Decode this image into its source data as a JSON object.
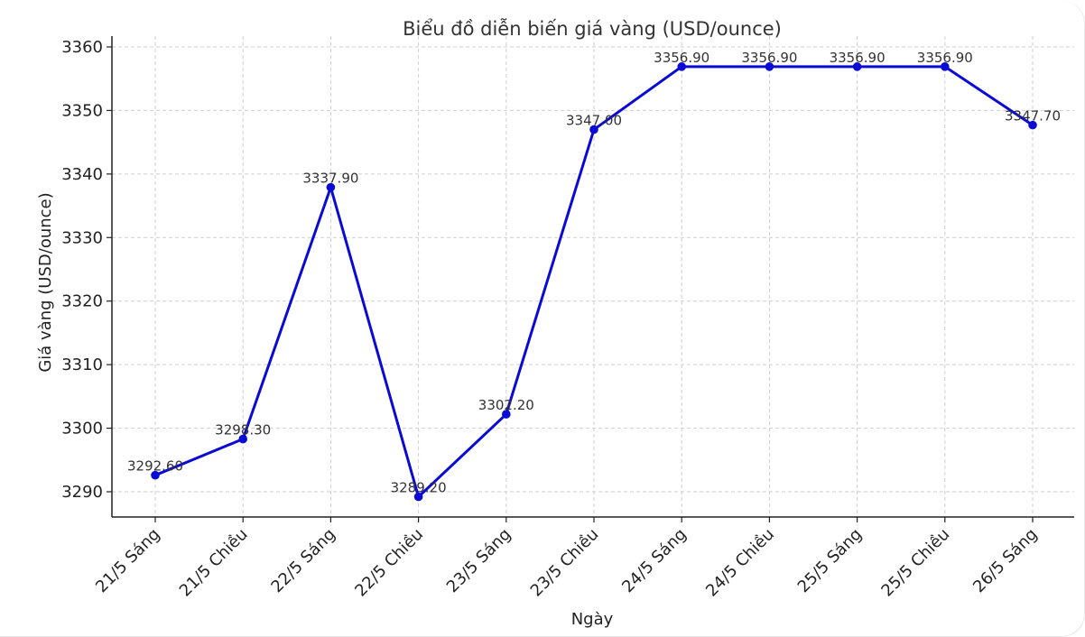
{
  "chart_data": {
    "type": "line",
    "title": "Biểu đồ diễn biến giá vàng (USD/ounce)",
    "xlabel": "Ngày",
    "ylabel": "Giá vàng (USD/ounce)",
    "categories": [
      "21/5 Sáng",
      "21/5 Chiều",
      "22/5 Sáng",
      "22/5 Chiều",
      "23/5 Sáng",
      "23/5 Chiều",
      "24/5 Sáng",
      "24/5 Chiều",
      "25/5 Sáng",
      "25/5 Chiều",
      "26/5 Sáng"
    ],
    "values": [
      3292.6,
      3298.3,
      3337.9,
      3289.2,
      3302.2,
      3347.0,
      3356.9,
      3356.9,
      3356.9,
      3356.9,
      3347.7
    ],
    "value_labels": [
      "3292.60",
      "3298.30",
      "3337.90",
      "3289.20",
      "3302.20",
      "3347.00",
      "3356.90",
      "3356.90",
      "3356.90",
      "3356.90",
      "3347.70"
    ],
    "ylim": [
      3286,
      3360
    ],
    "yticks": [
      3290,
      3300,
      3310,
      3320,
      3330,
      3340,
      3350,
      3360
    ],
    "grid": true,
    "line_color": "#0a0ad6",
    "marker_color": "#0a0ad6"
  }
}
